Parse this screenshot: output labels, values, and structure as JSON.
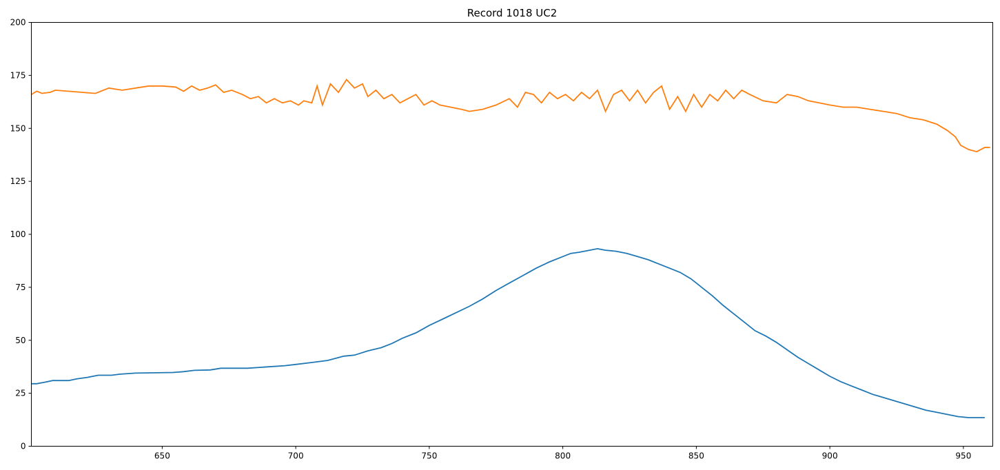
{
  "title": "Record 1018 UC2",
  "chart_data": {
    "type": "line",
    "title": "Record 1018 UC2",
    "xlabel": "",
    "ylabel": "",
    "xlim": [
      601,
      961
    ],
    "ylim": [
      0,
      200
    ],
    "x_ticks": [
      650,
      700,
      750,
      800,
      850,
      900,
      950
    ],
    "y_ticks": [
      0,
      25,
      50,
      75,
      100,
      125,
      150,
      175,
      200
    ],
    "grid": false,
    "legend": "none",
    "series": [
      {
        "color": "#1f77b4",
        "points": [
          [
            601,
            29.5
          ],
          [
            603,
            29.5
          ],
          [
            606,
            30.2
          ],
          [
            609,
            31
          ],
          [
            615,
            31
          ],
          [
            618,
            31.8
          ],
          [
            622,
            32.5
          ],
          [
            626,
            33.5
          ],
          [
            631,
            33.5
          ],
          [
            634,
            34
          ],
          [
            640,
            34.5
          ],
          [
            654,
            34.8
          ],
          [
            658,
            35.2
          ],
          [
            662,
            35.8
          ],
          [
            668,
            36
          ],
          [
            672,
            36.8
          ],
          [
            682,
            36.8
          ],
          [
            690,
            37.5
          ],
          [
            696,
            38
          ],
          [
            700,
            38.6
          ],
          [
            706,
            39.5
          ],
          [
            712,
            40.5
          ],
          [
            718,
            42.5
          ],
          [
            722,
            43
          ],
          [
            727,
            45
          ],
          [
            732,
            46.5
          ],
          [
            736,
            48.5
          ],
          [
            740,
            51
          ],
          [
            745,
            53.5
          ],
          [
            750,
            57
          ],
          [
            755,
            60
          ],
          [
            760,
            63
          ],
          [
            765,
            66
          ],
          [
            770,
            69.5
          ],
          [
            775,
            73.5
          ],
          [
            780,
            77
          ],
          [
            785,
            80.5
          ],
          [
            790,
            84
          ],
          [
            795,
            87
          ],
          [
            800,
            89.5
          ],
          [
            803,
            91
          ],
          [
            806,
            91.5
          ],
          [
            810,
            92.5
          ],
          [
            813,
            93.2
          ],
          [
            816,
            92.5
          ],
          [
            820,
            92
          ],
          [
            824,
            91
          ],
          [
            828,
            89.5
          ],
          [
            832,
            88
          ],
          [
            836,
            86
          ],
          [
            840,
            84
          ],
          [
            844,
            82
          ],
          [
            848,
            79
          ],
          [
            852,
            75
          ],
          [
            856,
            71
          ],
          [
            860,
            66.5
          ],
          [
            864,
            62.5
          ],
          [
            868,
            58.5
          ],
          [
            872,
            54.5
          ],
          [
            876,
            52
          ],
          [
            880,
            49
          ],
          [
            884,
            45.5
          ],
          [
            888,
            42
          ],
          [
            892,
            39
          ],
          [
            896,
            36
          ],
          [
            900,
            33
          ],
          [
            904,
            30.5
          ],
          [
            908,
            28.5
          ],
          [
            912,
            26.5
          ],
          [
            916,
            24.5
          ],
          [
            920,
            23
          ],
          [
            924,
            21.5
          ],
          [
            928,
            20
          ],
          [
            932,
            18.5
          ],
          [
            936,
            17
          ],
          [
            940,
            16
          ],
          [
            944,
            15
          ],
          [
            948,
            14
          ],
          [
            952,
            13.5
          ],
          [
            958,
            13.5
          ]
        ]
      },
      {
        "color": "#ff7f0e",
        "points": [
          [
            601,
            166
          ],
          [
            603,
            167.5
          ],
          [
            605,
            166.5
          ],
          [
            608,
            167
          ],
          [
            610,
            168
          ],
          [
            620,
            167
          ],
          [
            625,
            166.5
          ],
          [
            630,
            169
          ],
          [
            635,
            168
          ],
          [
            640,
            169
          ],
          [
            645,
            170
          ],
          [
            650,
            170
          ],
          [
            655,
            169.5
          ],
          [
            658,
            167.5
          ],
          [
            661,
            170
          ],
          [
            664,
            168
          ],
          [
            667,
            169
          ],
          [
            670,
            170.5
          ],
          [
            673,
            167
          ],
          [
            676,
            168
          ],
          [
            680,
            166
          ],
          [
            683,
            164
          ],
          [
            686,
            165
          ],
          [
            689,
            162
          ],
          [
            692,
            164
          ],
          [
            695,
            162
          ],
          [
            698,
            163
          ],
          [
            701,
            161
          ],
          [
            703,
            163
          ],
          [
            706,
            162
          ],
          [
            708,
            170
          ],
          [
            710,
            161
          ],
          [
            713,
            171
          ],
          [
            716,
            167
          ],
          [
            719,
            173
          ],
          [
            722,
            169
          ],
          [
            725,
            171
          ],
          [
            727,
            165
          ],
          [
            730,
            168
          ],
          [
            733,
            164
          ],
          [
            736,
            166
          ],
          [
            739,
            162
          ],
          [
            742,
            164
          ],
          [
            745,
            166
          ],
          [
            748,
            161
          ],
          [
            751,
            163
          ],
          [
            754,
            161
          ],
          [
            758,
            160
          ],
          [
            762,
            159
          ],
          [
            765,
            158
          ],
          [
            770,
            159
          ],
          [
            775,
            161
          ],
          [
            780,
            164
          ],
          [
            783,
            160
          ],
          [
            786,
            167
          ],
          [
            789,
            166
          ],
          [
            792,
            162
          ],
          [
            795,
            167
          ],
          [
            798,
            164
          ],
          [
            801,
            166
          ],
          [
            804,
            163
          ],
          [
            807,
            167
          ],
          [
            810,
            164
          ],
          [
            813,
            168
          ],
          [
            816,
            158
          ],
          [
            819,
            166
          ],
          [
            822,
            168
          ],
          [
            825,
            163
          ],
          [
            828,
            168
          ],
          [
            831,
            162
          ],
          [
            834,
            167
          ],
          [
            837,
            170
          ],
          [
            840,
            159
          ],
          [
            843,
            165
          ],
          [
            846,
            158
          ],
          [
            849,
            166
          ],
          [
            852,
            160
          ],
          [
            855,
            166
          ],
          [
            858,
            163
          ],
          [
            861,
            168
          ],
          [
            864,
            164
          ],
          [
            867,
            168
          ],
          [
            870,
            166
          ],
          [
            875,
            163
          ],
          [
            880,
            162
          ],
          [
            884,
            166
          ],
          [
            888,
            165
          ],
          [
            892,
            163
          ],
          [
            896,
            162
          ],
          [
            900,
            161
          ],
          [
            905,
            160
          ],
          [
            910,
            160
          ],
          [
            915,
            159
          ],
          [
            920,
            158
          ],
          [
            925,
            157
          ],
          [
            930,
            155
          ],
          [
            935,
            154
          ],
          [
            940,
            152
          ],
          [
            944,
            149
          ],
          [
            947,
            146
          ],
          [
            949,
            142
          ],
          [
            952,
            140
          ],
          [
            955,
            139
          ],
          [
            958,
            141
          ],
          [
            960,
            141
          ]
        ]
      }
    ]
  }
}
